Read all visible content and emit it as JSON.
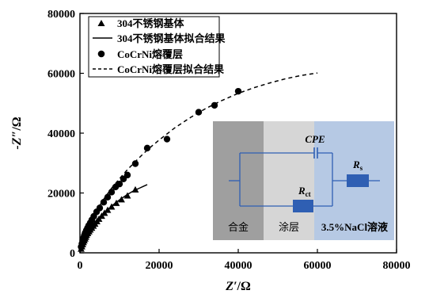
{
  "chart_data": {
    "type": "scatter",
    "xlabel_main": "Z′",
    "xlabel_unit": "/Ω",
    "ylabel_main": "-Z″",
    "ylabel_unit": "/Ω",
    "xlim": [
      0,
      80000
    ],
    "ylim": [
      0,
      80000
    ],
    "x_ticks": [
      0,
      20000,
      40000,
      60000,
      80000
    ],
    "y_ticks": [
      0,
      20000,
      40000,
      60000,
      80000
    ],
    "x_tick_labels": [
      "0",
      "20000",
      "40000",
      "60000",
      "80000"
    ],
    "y_tick_labels": [
      "0",
      "20000",
      "40000",
      "60000",
      "80000"
    ],
    "legend_position": "top-left",
    "series": [
      {
        "name": "304不锈钢基体",
        "kind": "points",
        "marker": "triangle",
        "x": [
          300,
          500,
          700,
          900,
          1100,
          1300,
          1500,
          1700,
          2000,
          2300,
          2600,
          3000,
          3400,
          3800,
          4300,
          4800,
          5500,
          6200,
          7000,
          8000,
          9200,
          10500,
          12000,
          14000
        ],
        "y": [
          1200,
          2000,
          2700,
          3400,
          4000,
          4600,
          5200,
          5800,
          6400,
          7000,
          7600,
          8200,
          8900,
          9600,
          10400,
          11200,
          12200,
          13200,
          14200,
          15300,
          16500,
          17700,
          19000,
          21000
        ]
      },
      {
        "name": "304不锈钢基体拟合结果",
        "kind": "line",
        "dash": "solid",
        "x": [
          0,
          500,
          1000,
          2000,
          3000,
          4000,
          5000,
          6000,
          7000,
          8000,
          9000,
          10000,
          11000,
          12000,
          13000,
          14000,
          15000,
          16000,
          17000
        ],
        "y": [
          0,
          2500,
          4200,
          6800,
          8800,
          10400,
          11900,
          13200,
          14400,
          15600,
          16700,
          17700,
          18600,
          19500,
          20300,
          21000,
          21600,
          22200,
          22800
        ]
      },
      {
        "name": "CoCrNi熔覆层",
        "kind": "points",
        "marker": "circle",
        "x": [
          300,
          500,
          700,
          900,
          1100,
          1300,
          1600,
          1900,
          2200,
          2600,
          3000,
          3500,
          4200,
          5000,
          6000,
          7000,
          8000,
          9000,
          10000,
          11000,
          12000,
          14000,
          17000,
          22000,
          30000,
          34000,
          40000
        ],
        "y": [
          2000,
          3100,
          4100,
          5000,
          5800,
          6600,
          7500,
          8300,
          9100,
          10000,
          11000,
          12200,
          13700,
          15000,
          16900,
          18600,
          20300,
          22000,
          23000,
          24700,
          26000,
          29800,
          35000,
          38000,
          47000,
          49300,
          54000
        ]
      },
      {
        "name": "CoCrNi熔覆层拟合结果",
        "kind": "line",
        "dash": "dashed",
        "x": [
          0,
          1000,
          2000,
          4000,
          6000,
          8000,
          10000,
          12000,
          14000,
          16000,
          18000,
          20000,
          24000,
          28000,
          32000,
          36000,
          40000,
          44000,
          48000,
          52000,
          56000,
          60000
        ],
        "y": [
          0,
          5200,
          8500,
          13800,
          17900,
          21600,
          24800,
          27800,
          30500,
          33100,
          35500,
          37700,
          41800,
          45300,
          48400,
          51000,
          53300,
          55200,
          56800,
          58200,
          59300,
          60100
        ]
      }
    ]
  },
  "inset": {
    "regions": [
      "合金",
      "涂层",
      "3.5%NaCl溶液"
    ],
    "cpe_label": "CPE",
    "rct_main": "R",
    "rct_sub": "ct",
    "rs_main": "R",
    "rs_sub": "s",
    "region_colors": [
      "#9f9f9f",
      "#d6d6d6",
      "#b6c9e4"
    ],
    "wire_color": "#2f5fb3",
    "resistor_color": "#2f5fb3"
  }
}
